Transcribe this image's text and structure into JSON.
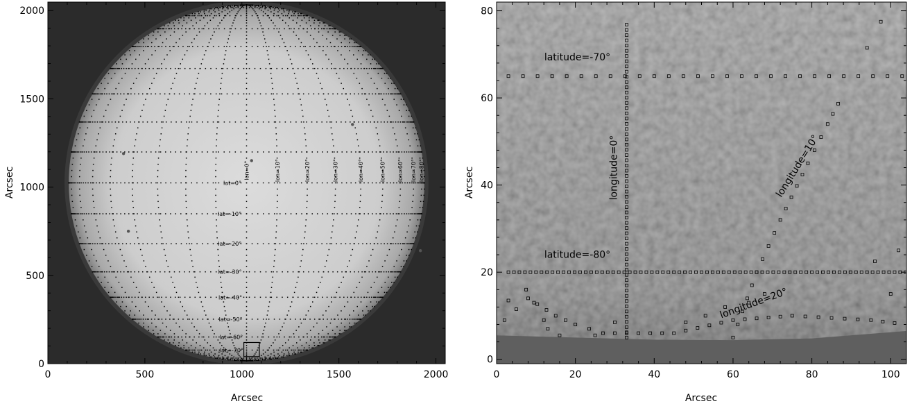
{
  "chart_data": [
    {
      "type": "image",
      "title": "",
      "xlabel": "Arcsec",
      "ylabel": "Arcsec",
      "xlim": [
        0,
        2048
      ],
      "ylim": [
        0,
        2048
      ],
      "xticks": [
        0,
        500,
        1000,
        1500,
        2000
      ],
      "yticks": [
        0,
        500,
        1000,
        1500,
        2000
      ],
      "disk_center": [
        1024,
        1024
      ],
      "disk_radius": 960,
      "latitude_lines_deg": [
        -80,
        -70,
        -60,
        -50,
        -40,
        -30,
        -20,
        -10,
        0,
        10,
        20,
        30,
        40,
        50,
        60,
        70,
        80
      ],
      "longitude_lines_deg": [
        -80,
        -70,
        -60,
        -50,
        -40,
        -30,
        -20,
        -10,
        0,
        10,
        20,
        30,
        40,
        50,
        60,
        70,
        80,
        90
      ],
      "lat_labels": [
        {
          "text": "lat=0°",
          "lat": 0
        },
        {
          "text": "lat=-10°",
          "lat": -10
        },
        {
          "text": "lat=-20°",
          "lat": -20
        },
        {
          "text": "lat=-30°",
          "lat": -30
        },
        {
          "text": "lat=-40°",
          "lat": -40
        },
        {
          "text": "lat=-50°",
          "lat": -50
        },
        {
          "text": "lat=-60°",
          "lat": -60
        },
        {
          "text": "lat=-70°",
          "lat": -70
        }
      ],
      "lon_labels": [
        {
          "text": "lon=0°",
          "lon": 0
        },
        {
          "text": "lon=10°",
          "lon": 10
        },
        {
          "text": "lon=20°",
          "lon": 20
        },
        {
          "text": "lon=30°",
          "lon": 30
        },
        {
          "text": "lon=40°",
          "lon": 40
        },
        {
          "text": "lon=50°",
          "lon": 50
        },
        {
          "text": "lon=60°",
          "lon": 60
        },
        {
          "text": "lon=70°",
          "lon": 70
        },
        {
          "text": "lon=80°",
          "lon": 80
        }
      ],
      "sunspots": [
        [
          390,
          1190
        ],
        [
          1570,
          1355
        ],
        [
          415,
          750
        ],
        [
          1050,
          1150
        ],
        [
          1920,
          640
        ]
      ],
      "zoom_box": {
        "x": [
          1010,
          1090
        ],
        "y": [
          40,
          120
        ]
      }
    },
    {
      "type": "image",
      "title": "",
      "xlabel": "Arcsec",
      "ylabel": "Arcsec",
      "xlim": [
        0,
        104
      ],
      "ylim": [
        -1,
        82
      ],
      "xticks": [
        0,
        20,
        40,
        60,
        80,
        100
      ],
      "yticks": [
        0,
        20,
        40,
        60,
        80
      ],
      "limb": [
        [
          0,
          5.5
        ],
        [
          20,
          5
        ],
        [
          40,
          4.5
        ],
        [
          60,
          4.4
        ],
        [
          80,
          4.8
        ],
        [
          104,
          6.5
        ]
      ],
      "latitude_rows": [
        {
          "y": 65,
          "label": "latitude=-70°"
        },
        {
          "y": 20,
          "label": "latitude=-80°"
        }
      ],
      "longitude_lines": [
        {
          "label": "longitude=0°",
          "points": [
            [
              33,
              5
            ],
            [
              33,
              78
            ]
          ]
        },
        {
          "label": "longitude=10°",
          "points": [
            [
              60,
              5
            ],
            [
              66,
              20
            ],
            [
              72,
              32
            ],
            [
              79,
              45
            ],
            [
              84,
              54
            ],
            [
              88,
              61
            ]
          ]
        },
        {
          "label": "longitude=20°",
          "points": [
            [
              2,
              9
            ],
            [
              8,
              14
            ],
            [
              15,
              10
            ],
            [
              20,
              8
            ],
            [
              27,
              6
            ],
            [
              45,
              6
            ],
            [
              60,
              9
            ],
            [
              75,
              10
            ],
            [
              95,
              9
            ],
            [
              104,
              8
            ]
          ]
        }
      ],
      "extra_points": [
        [
          3,
          13.5
        ],
        [
          7.5,
          16
        ],
        [
          9.5,
          13
        ],
        [
          12,
          9
        ],
        [
          13,
          7
        ],
        [
          16,
          5.5
        ],
        [
          25,
          5.5
        ],
        [
          30,
          8.5
        ],
        [
          48,
          8.5
        ],
        [
          53,
          10
        ],
        [
          58,
          12
        ],
        [
          64,
          13
        ],
        [
          68,
          15
        ],
        [
          96,
          22.5
        ],
        [
          100,
          15
        ],
        [
          102,
          25
        ],
        [
          97.5,
          77.5
        ],
        [
          94,
          71.5
        ]
      ]
    }
  ]
}
